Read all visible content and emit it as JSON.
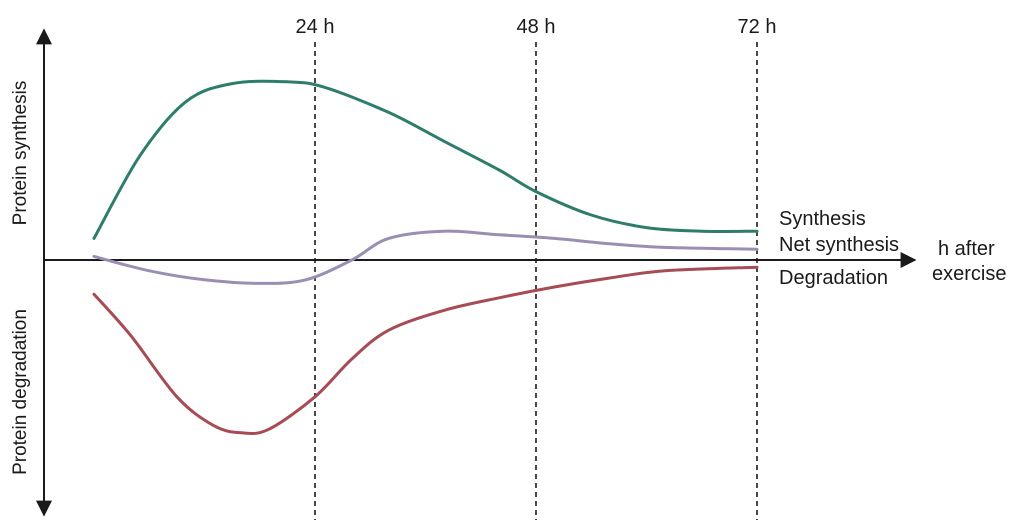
{
  "chart_data": {
    "type": "line",
    "title": "",
    "xlabel": "h after exercise",
    "ylabel_positive": "Protein synthesis",
    "ylabel_negative": "Protein degradation",
    "x_ticks": [
      {
        "value": 24,
        "label": "24 h"
      },
      {
        "value": 48,
        "label": "48 h"
      },
      {
        "value": 72,
        "label": "72 h"
      }
    ],
    "xlim": [
      0,
      72
    ],
    "ylim": [
      -10,
      10
    ],
    "grid": false,
    "series": [
      {
        "name": "Synthesis",
        "color": "#2e7d6b",
        "points": [
          [
            0,
            1.2
          ],
          [
            5,
            5.8
          ],
          [
            10,
            8.8
          ],
          [
            15,
            9.8
          ],
          [
            21,
            9.9
          ],
          [
            25,
            9.6
          ],
          [
            32,
            8.2
          ],
          [
            38,
            6.6
          ],
          [
            44,
            5.0
          ],
          [
            48,
            3.8
          ],
          [
            54,
            2.5
          ],
          [
            60,
            1.8
          ],
          [
            66,
            1.6
          ],
          [
            72,
            1.6
          ]
        ]
      },
      {
        "name": "Net synthesis",
        "color": "#9a8fb3",
        "points": [
          [
            0,
            0.2
          ],
          [
            6,
            -0.6
          ],
          [
            12,
            -1.1
          ],
          [
            18,
            -1.3
          ],
          [
            23,
            -1.1
          ],
          [
            28,
            0.0
          ],
          [
            32,
            1.2
          ],
          [
            38,
            1.6
          ],
          [
            44,
            1.4
          ],
          [
            50,
            1.2
          ],
          [
            56,
            0.9
          ],
          [
            62,
            0.7
          ],
          [
            72,
            0.6
          ]
        ]
      },
      {
        "name": "Degradation",
        "color": "#a64c55",
        "points": [
          [
            0,
            -1.9
          ],
          [
            4,
            -4.2
          ],
          [
            9,
            -7.6
          ],
          [
            13,
            -9.2
          ],
          [
            16,
            -9.6
          ],
          [
            19,
            -9.4
          ],
          [
            24,
            -7.6
          ],
          [
            28,
            -5.5
          ],
          [
            32,
            -3.9
          ],
          [
            38,
            -2.8
          ],
          [
            44,
            -2.1
          ],
          [
            50,
            -1.5
          ],
          [
            56,
            -1.0
          ],
          [
            62,
            -0.6
          ],
          [
            72,
            -0.4
          ]
        ]
      }
    ]
  }
}
